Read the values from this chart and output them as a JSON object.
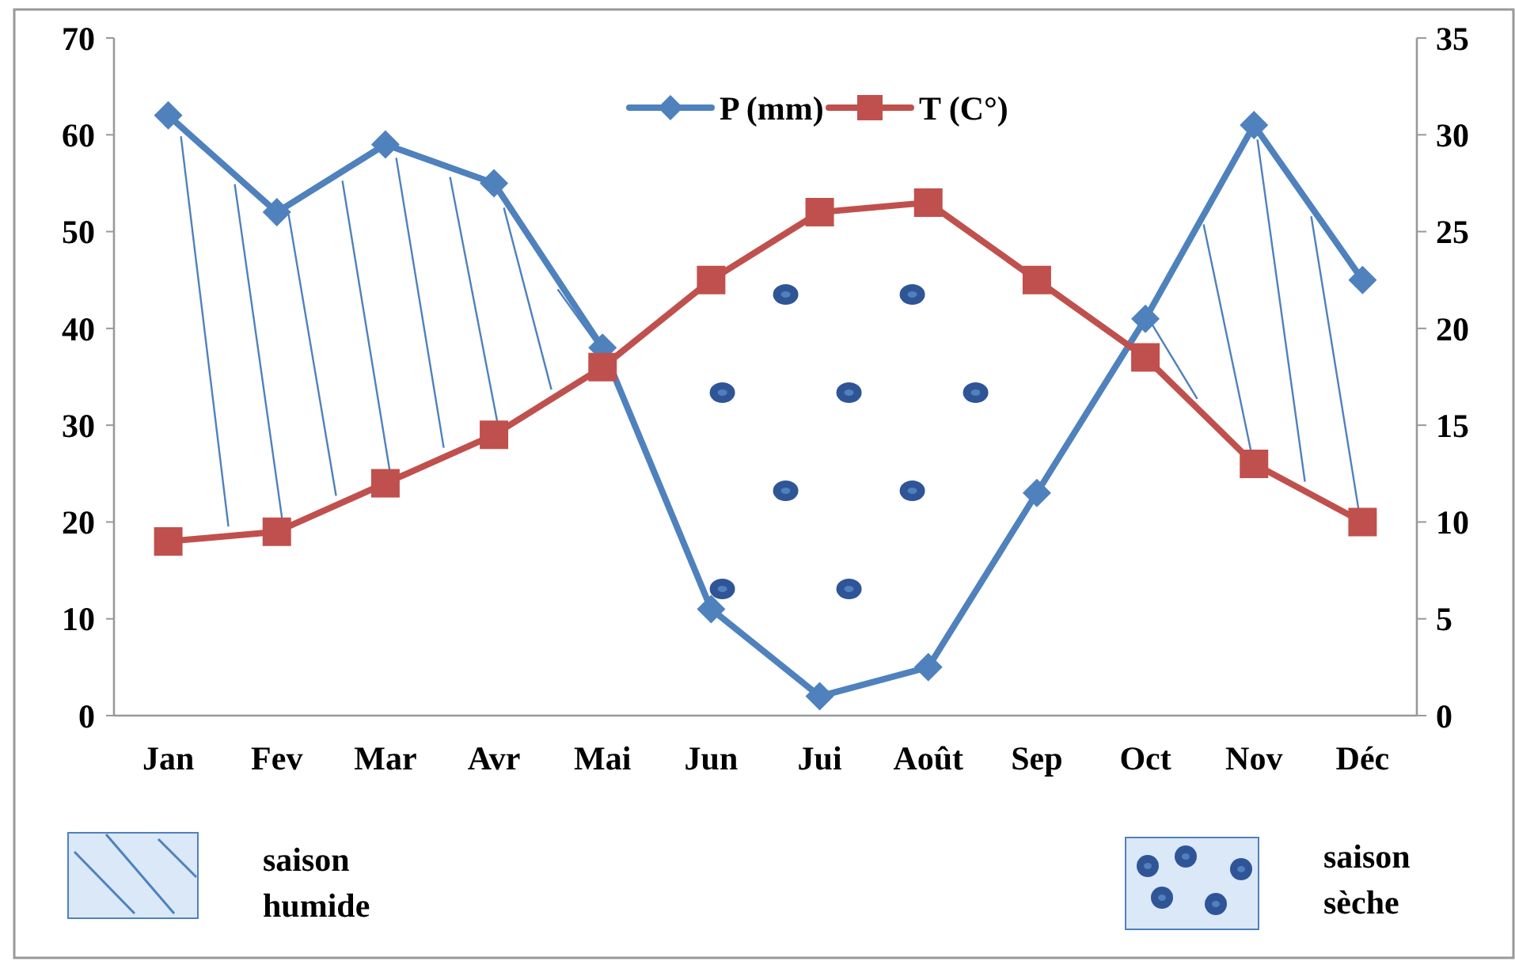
{
  "chart_data": {
    "type": "line",
    "categories": [
      "Jan",
      "Fev",
      "Mar",
      "Avr",
      "Mai",
      "Jun",
      "Jui",
      "Août",
      "Sep",
      "Oct",
      "Nov",
      "Déc"
    ],
    "series": [
      {
        "name": "P (mm)",
        "color": "#4f81bd",
        "marker": "diamond",
        "values": [
          62,
          52,
          59,
          55,
          38,
          11,
          2,
          5,
          23,
          41,
          61,
          45
        ]
      },
      {
        "name": "T (C°)",
        "color": "#c0504d",
        "marker": "square",
        "axis": "y2",
        "values": [
          9,
          9.5,
          12,
          14.5,
          18,
          22.5,
          26,
          26.5,
          22.5,
          18.5,
          13,
          10
        ]
      }
    ],
    "ylim": [
      0,
      70
    ],
    "yticks": [
      0,
      10,
      20,
      30,
      40,
      50,
      60,
      70
    ],
    "y2lim": [
      0,
      35
    ],
    "y2ticks": [
      0,
      5,
      10,
      15,
      20,
      25,
      30,
      35
    ],
    "grid": false,
    "legend": "top",
    "line_style": "solid",
    "annotations": [
      "saison humide",
      "saison sèche"
    ]
  }
}
